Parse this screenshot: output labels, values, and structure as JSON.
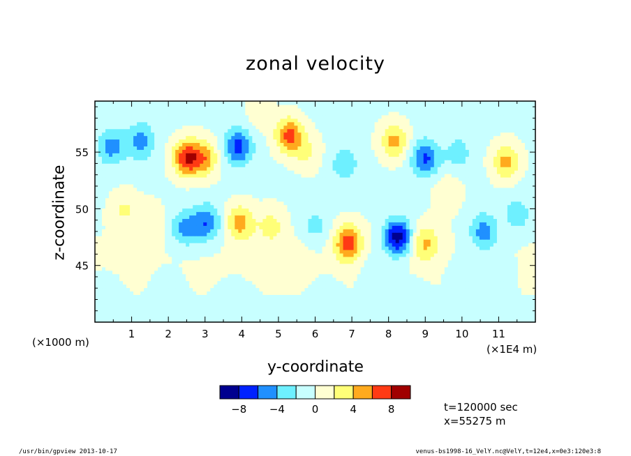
{
  "chart_data": {
    "type": "heatmap",
    "title": "zonal velocity",
    "xlabel": "y-coordinate",
    "ylabel": "z-coordinate",
    "x_unit": "(×1000 m)",
    "x_scale_note": "(×1E4 m)",
    "xlim": [
      0,
      12
    ],
    "ylim": [
      40,
      59.5
    ],
    "x_ticks": [
      "1",
      "2",
      "3",
      "4",
      "5",
      "6",
      "7",
      "8",
      "9",
      "10",
      "11"
    ],
    "y_ticks": [
      "45",
      "50",
      "55"
    ],
    "colorbar": {
      "levels": [
        -10,
        -8,
        -6,
        -4,
        -2,
        0,
        2,
        4,
        6,
        8,
        10
      ],
      "tick_labels": [
        "-8",
        "-4",
        "0",
        "4",
        "8"
      ],
      "colors": [
        "#00008f",
        "#0022ff",
        "#2090ff",
        "#6ef0ff",
        "#c8ffff",
        "#ffffd2",
        "#ffff78",
        "#ffaa1e",
        "#ff3a14",
        "#a00000"
      ]
    },
    "features": [
      {
        "y": 0.45,
        "z": 55.5,
        "v": -4.5
      },
      {
        "y": 1.25,
        "z": 56.0,
        "v": -4.5
      },
      {
        "y": 2.5,
        "z": 54.5,
        "v": 8.0
      },
      {
        "y": 3.0,
        "z": 54.5,
        "v": 5.0
      },
      {
        "y": 3.9,
        "z": 55.5,
        "v": -6.5
      },
      {
        "y": 5.3,
        "z": 56.5,
        "v": 7.0
      },
      {
        "y": 6.8,
        "z": 54.0,
        "v": -3.0
      },
      {
        "y": 9.0,
        "z": 54.5,
        "v": -6.0
      },
      {
        "y": 8.15,
        "z": 56.0,
        "v": 5.0
      },
      {
        "y": 11.2,
        "z": 54.2,
        "v": 5.0
      },
      {
        "y": 5.8,
        "z": 55.0,
        "v": 2.5
      },
      {
        "y": 9.9,
        "z": 55.0,
        "v": -2.5
      },
      {
        "y": 2.45,
        "z": 48.3,
        "v": -4.5
      },
      {
        "y": 3.05,
        "z": 48.8,
        "v": -5.5
      },
      {
        "y": 3.95,
        "z": 48.8,
        "v": 5.0
      },
      {
        "y": 4.8,
        "z": 48.5,
        "v": 3.0
      },
      {
        "y": 6.9,
        "z": 47.0,
        "v": 7.0
      },
      {
        "y": 8.25,
        "z": 47.5,
        "v": -9.0
      },
      {
        "y": 9.0,
        "z": 47.0,
        "v": 4.5
      },
      {
        "y": 10.6,
        "z": 48.0,
        "v": -5.0
      },
      {
        "y": 11.5,
        "z": 49.5,
        "v": -3.0
      },
      {
        "y": 0.8,
        "z": 50.0,
        "v": 2.5
      },
      {
        "y": 1.5,
        "z": 49.0,
        "v": 2.0
      },
      {
        "y": 6.0,
        "z": 48.5,
        "v": -2.5
      },
      {
        "y": 9.6,
        "z": 51.5,
        "v": 2.0
      },
      {
        "y": 7.6,
        "z": 44.5,
        "v": -1.5
      },
      {
        "y": 10.0,
        "z": 44.0,
        "v": -1.5
      },
      {
        "y": 2.0,
        "z": 43.0,
        "v": -1.2
      },
      {
        "y": 11.0,
        "z": 44.5,
        "v": -1.5
      },
      {
        "y": 6.3,
        "z": 42.0,
        "v": -1.5
      },
      {
        "y": 0.3,
        "z": 42.5,
        "v": -1.5
      },
      {
        "y": 3.8,
        "z": 42.0,
        "v": -1.2
      },
      {
        "y": 5.5,
        "z": 45.5,
        "v": 1.0
      },
      {
        "y": 8.7,
        "z": 42.0,
        "v": -1.5
      },
      {
        "y": 1.0,
        "z": 46.0,
        "v": 1.0
      },
      {
        "y": 4.5,
        "z": 58.5,
        "v": 1.5
      }
    ]
  },
  "annotations": {
    "time": "t=120000 sec",
    "position": "x=55275 m",
    "footer_left": "/usr/bin/gpview  2013-10-17",
    "footer_right": "venus-bs1998-16_VelY.nc@VelY,t=12e4,x=0e3:120e3:8"
  }
}
